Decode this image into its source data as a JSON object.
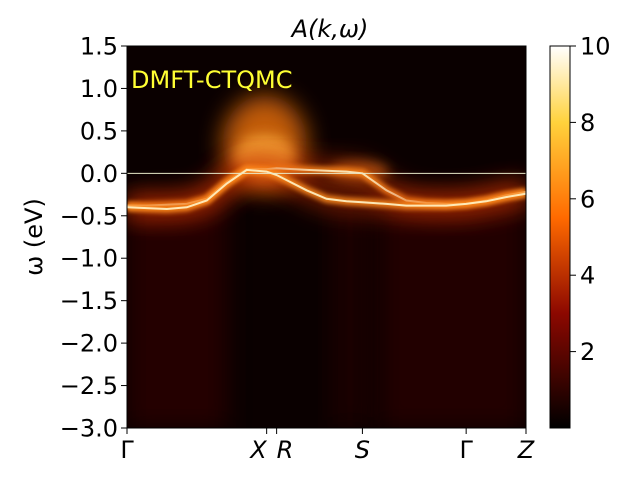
{
  "chart_data": {
    "type": "heatmap",
    "title": "A(k,ω)",
    "ylabel": "ω (eV)",
    "xlabel": "",
    "annotation": "DMFT-CTQMC",
    "ylim": [
      -3.0,
      1.5
    ],
    "yticks": [
      "1.5",
      "1.0",
      "0.5",
      "0.0",
      "−0.5",
      "−1.0",
      "−1.5",
      "−2.0",
      "−2.5",
      "−3.0"
    ],
    "yticks_values": [
      1.5,
      1.0,
      0.5,
      0.0,
      -0.5,
      -1.0,
      -1.5,
      -2.0,
      -2.5,
      -3.0
    ],
    "k_path_labels": [
      "Γ",
      "X",
      "R",
      "S",
      "Γ",
      "Z"
    ],
    "k_path_positions": [
      0.0,
      0.35,
      0.375,
      0.59,
      0.85,
      1.0
    ],
    "fermi_level": 0.0,
    "colorbar": {
      "min": 0.0,
      "max": 10.0,
      "ticks": [
        "2",
        "4",
        "6",
        "8",
        "10"
      ],
      "tick_values": [
        2,
        4,
        6,
        8,
        10
      ],
      "colormap": "afmhot"
    },
    "band_dispersion": {
      "description_values": "band energy (eV) vs k-path fraction",
      "k": [
        0.0,
        0.05,
        0.1,
        0.15,
        0.2,
        0.25,
        0.3,
        0.35,
        0.375,
        0.45,
        0.5,
        0.55,
        0.59,
        0.65,
        0.7,
        0.75,
        0.8,
        0.85,
        0.9,
        0.95,
        1.0
      ],
      "band1": [
        -0.38,
        -0.38,
        -0.37,
        -0.36,
        -0.3,
        -0.1,
        0.05,
        0.05,
        0.06,
        0.04,
        0.03,
        0.02,
        0.0,
        -0.2,
        -0.32,
        -0.35,
        -0.36,
        -0.36,
        -0.32,
        -0.26,
        -0.22
      ],
      "band2": [
        -0.4,
        -0.41,
        -0.42,
        -0.4,
        -0.32,
        -0.12,
        0.04,
        0.02,
        -0.02,
        -0.2,
        -0.3,
        -0.33,
        -0.34,
        -0.36,
        -0.38,
        -0.38,
        -0.38,
        -0.36,
        -0.33,
        -0.28,
        -0.24
      ]
    }
  }
}
